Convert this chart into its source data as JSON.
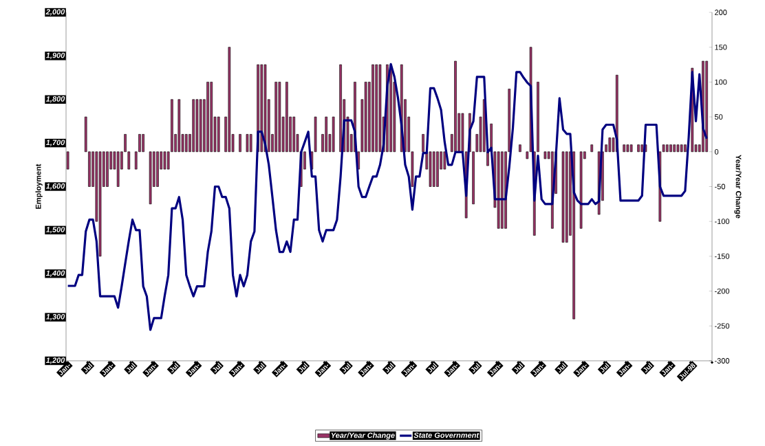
{
  "chart_data": {
    "type": "bar",
    "categories": [
      "Jan-",
      null,
      null,
      null,
      null,
      null,
      "Jul",
      null,
      null,
      null,
      null,
      null,
      "Jan-",
      null,
      null,
      null,
      null,
      null,
      "Jul",
      null,
      null,
      null,
      null,
      null,
      "Jan-",
      null,
      null,
      null,
      null,
      null,
      "Jul",
      null,
      null,
      null,
      null,
      null,
      "Jan-",
      null,
      null,
      null,
      null,
      null,
      "Jul",
      null,
      null,
      null,
      null,
      null,
      "Jan-",
      null,
      null,
      null,
      null,
      null,
      "Jul",
      null,
      null,
      null,
      null,
      null,
      "Jan-",
      null,
      null,
      null,
      null,
      null,
      "Jul",
      null,
      null,
      null,
      null,
      null,
      "Jan-",
      null,
      null,
      null,
      null,
      null,
      "Jul",
      null,
      null,
      null,
      null,
      null,
      "Jan-",
      null,
      null,
      null,
      null,
      null,
      "Jul",
      null,
      null,
      null,
      null,
      null,
      "Jan-",
      null,
      null,
      null,
      null,
      null,
      "Jul",
      null,
      null,
      null,
      null,
      null,
      "Jan-",
      null,
      null,
      null,
      null,
      null,
      "Jul",
      null,
      null,
      null,
      null,
      null,
      "Jan-",
      null,
      null,
      null,
      null,
      null,
      "Jul",
      null,
      null,
      null,
      null,
      null,
      "Jan-",
      null,
      null,
      null,
      null,
      null,
      "Jul",
      null,
      null,
      null,
      null,
      null,
      "Jan-",
      null,
      null,
      null,
      null,
      null,
      "Jul",
      null,
      null,
      null,
      null,
      null,
      "Jan-",
      null,
      null,
      null,
      null,
      null,
      "Jul",
      null,
      null,
      null,
      null,
      null,
      "Jan-",
      null,
      null,
      null,
      null,
      null,
      "Jul-98",
      null,
      null,
      null,
      null,
      null
    ],
    "series": [
      {
        "name": "Year/Year Change",
        "axis": "y2",
        "color": "#993366",
        "values": [
          -25,
          null,
          null,
          null,
          null,
          50,
          -50,
          -50,
          -100,
          -150,
          -50,
          -50,
          -25,
          -25,
          -50,
          -25,
          25,
          -25,
          null,
          -25,
          25,
          25,
          null,
          -75,
          -50,
          -50,
          -25,
          -25,
          -25,
          75,
          25,
          75,
          25,
          25,
          25,
          75,
          75,
          75,
          75,
          100,
          100,
          50,
          50,
          null,
          50,
          150,
          25,
          null,
          25,
          null,
          25,
          25,
          null,
          125,
          125,
          125,
          75,
          25,
          100,
          100,
          50,
          100,
          50,
          50,
          25,
          -50,
          -25,
          null,
          -25,
          50,
          null,
          25,
          50,
          25,
          50,
          null,
          125,
          75,
          50,
          25,
          100,
          -25,
          75,
          100,
          100,
          125,
          125,
          125,
          50,
          125,
          125,
          100,
          null,
          125,
          75,
          50,
          -50,
          null,
          null,
          25,
          -25,
          -50,
          -50,
          -50,
          -25,
          -25,
          null,
          25,
          130,
          55,
          55,
          -95,
          55,
          -75,
          25,
          50,
          75,
          -20,
          40,
          -80,
          -110,
          -110,
          -110,
          90,
          null,
          null,
          10,
          null,
          -10,
          150,
          -120,
          100,
          null,
          -10,
          -10,
          -110,
          -60,
          null,
          -130,
          -130,
          -120,
          -240,
          null,
          -110,
          -10,
          null,
          10,
          null,
          -90,
          -70,
          10,
          20,
          20,
          110,
          null,
          10,
          10,
          10,
          null,
          10,
          10,
          10,
          null,
          null,
          null,
          -100,
          10,
          10,
          10,
          10,
          10,
          10,
          10,
          null,
          120,
          10,
          10,
          130,
          130,
          null
        ]
      },
      {
        "name": "State Government",
        "type": "line",
        "color": "#000080",
        "values": [
          1372,
          1372,
          1372,
          1397,
          1397,
          1497,
          1524,
          1524,
          1474,
          1348,
          1348,
          1348,
          1348,
          1348,
          1322,
          1371,
          1424,
          1476,
          1524,
          1500,
          1500,
          1371,
          1348,
          1271,
          1298,
          1298,
          1298,
          1350,
          1397,
          1550,
          1550,
          1576,
          1524,
          1397,
          1371,
          1348,
          1371,
          1371,
          1371,
          1450,
          1497,
          1600,
          1600,
          1576,
          1576,
          1550,
          1397,
          1348,
          1397,
          1371,
          1397,
          1474,
          1497,
          1726,
          1726,
          1697,
          1650,
          1576,
          1500,
          1450,
          1450,
          1474,
          1450,
          1524,
          1524,
          1679,
          1702,
          1726,
          1623,
          1623,
          1500,
          1474,
          1500,
          1500,
          1500,
          1524,
          1623,
          1752,
          1752,
          1752,
          1726,
          1600,
          1576,
          1576,
          1600,
          1623,
          1623,
          1650,
          1697,
          1829,
          1881,
          1852,
          1803,
          1740,
          1650,
          1623,
          1547,
          1623,
          1623,
          1677,
          1677,
          1826,
          1826,
          1803,
          1776,
          1702,
          1650,
          1650,
          1679,
          1679,
          1679,
          1579,
          1729,
          1750,
          1852,
          1852,
          1852,
          1679,
          1689,
          1571,
          1571,
          1571,
          1571,
          1645,
          1734,
          1863,
          1863,
          1850,
          1839,
          1831,
          1568,
          1671,
          1571,
          1560,
          1560,
          1560,
          1671,
          1803,
          1731,
          1721,
          1721,
          1587,
          1568,
          1560,
          1560,
          1560,
          1571,
          1560,
          1566,
          1731,
          1742,
          1742,
          1742,
          1708,
          1568,
          1568,
          1568,
          1568,
          1568,
          1568,
          1579,
          1742,
          1742,
          1742,
          1742,
          1600,
          1579,
          1579,
          1579,
          1579,
          1579,
          1579,
          1590,
          1713,
          1863,
          1750,
          1858,
          1734,
          1710,
          null
        ]
      }
    ],
    "ylabel": "Employment",
    "y2label": "Year/Year Change",
    "ylim": [
      1200,
      2000
    ],
    "yticks": [
      {
        "value": 1200,
        "label": "1,200"
      },
      {
        "value": 1300,
        "label": "1,300"
      },
      {
        "value": 1400,
        "label": "1,400"
      },
      {
        "value": 1500,
        "label": "1,500"
      },
      {
        "value": 1600,
        "label": "1,600"
      },
      {
        "value": 1700,
        "label": "1,700"
      },
      {
        "value": 1800,
        "label": "1,800"
      },
      {
        "value": 1900,
        "label": "1,900"
      },
      {
        "value": 2000,
        "label": "2,000"
      }
    ],
    "y2lim": [
      -300,
      200
    ],
    "y2ticks": [
      -300,
      -250,
      -200,
      -150,
      -100,
      -50,
      0,
      50,
      100,
      150,
      200
    ],
    "legend": "bottom"
  }
}
